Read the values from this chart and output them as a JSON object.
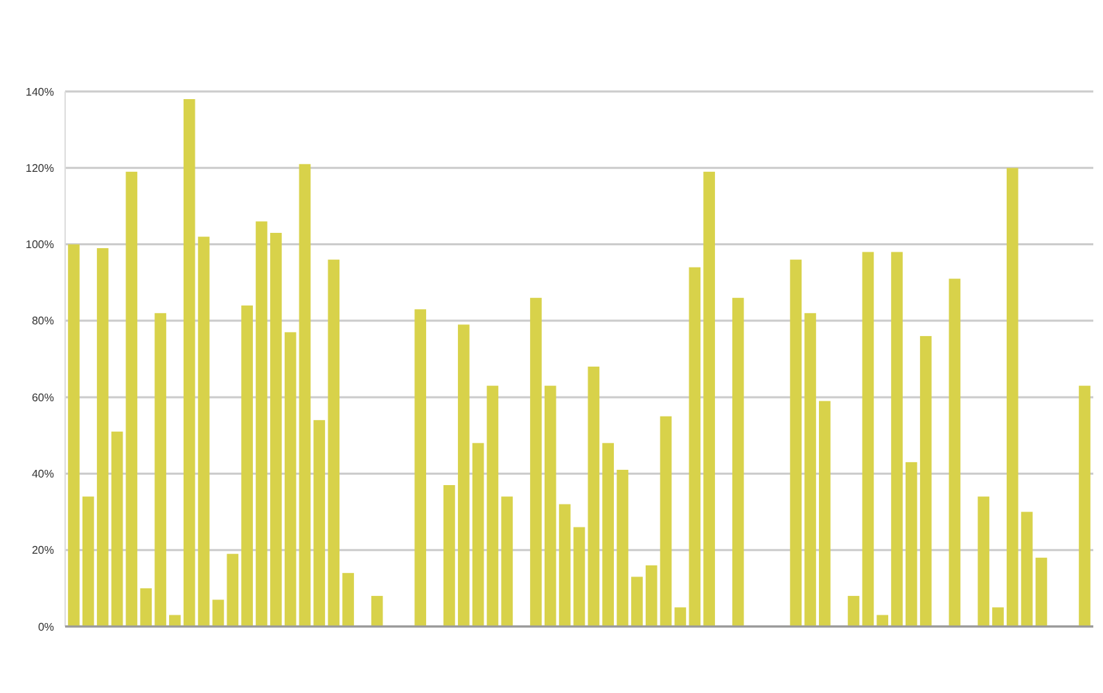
{
  "chart_data": {
    "type": "bar",
    "categories": [
      null,
      null,
      null,
      null,
      null,
      null,
      null,
      null,
      null,
      null,
      null,
      null,
      null,
      null,
      null,
      null,
      null,
      null,
      null,
      null,
      null,
      null,
      null,
      null,
      null,
      null,
      null,
      null,
      null,
      null,
      null,
      null,
      null,
      null,
      null,
      null,
      null,
      null,
      null,
      null,
      null,
      null,
      null,
      null,
      null,
      null,
      null,
      null,
      null,
      null,
      null,
      null,
      null,
      null,
      null,
      null,
      null,
      null,
      null,
      null,
      null,
      null,
      null,
      null,
      null,
      null,
      null,
      null,
      null,
      null,
      null
    ],
    "series": [
      {
        "color": "#d8d24a",
        "values": [
          100,
          34,
          99,
          51,
          119,
          10,
          82,
          3,
          138,
          102,
          7,
          19,
          84,
          106,
          103,
          77,
          121,
          54,
          96,
          14,
          null,
          8,
          null,
          null,
          83,
          null,
          37,
          79,
          48,
          63,
          34,
          null,
          86,
          63,
          32,
          26,
          68,
          48,
          41,
          13,
          16,
          55,
          5,
          94,
          119,
          null,
          86,
          null,
          null,
          null,
          96,
          82,
          59,
          null,
          8,
          98,
          3,
          98,
          43,
          76,
          null,
          91,
          null,
          34,
          5,
          120,
          30,
          18,
          null,
          null,
          63
        ]
      }
    ],
    "ylim": [
      0,
      140
    ],
    "yticks": [
      {
        "value": 0,
        "label": "0%"
      },
      {
        "value": 20,
        "label": "20%"
      },
      {
        "value": 40,
        "label": "40%"
      },
      {
        "value": 60,
        "label": "60%"
      },
      {
        "value": 80,
        "label": "80%"
      },
      {
        "value": 100,
        "label": "100%"
      },
      {
        "value": 120,
        "label": "120%"
      },
      {
        "value": 140,
        "label": "140%"
      }
    ],
    "grid": "y"
  }
}
